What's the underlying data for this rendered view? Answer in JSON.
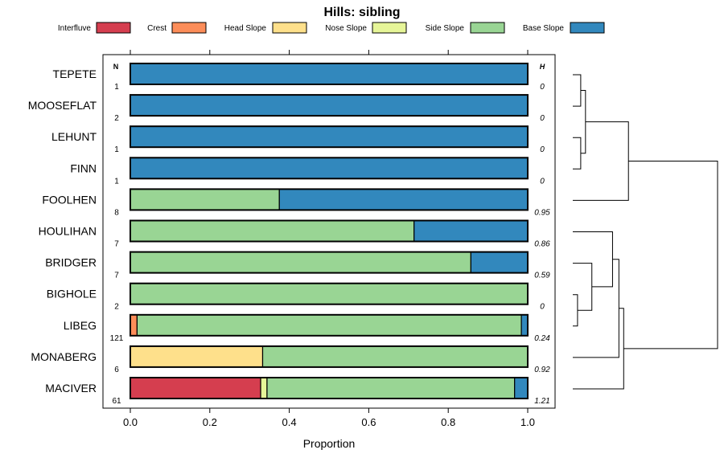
{
  "chart_data": {
    "type": "bar",
    "orientation": "horizontal",
    "stacked": true,
    "title": "Hills: sibling",
    "xlabel": "Proportion",
    "ylabel": "",
    "xlim": [
      -0.07,
      1.07
    ],
    "xticks": [
      0.0,
      0.2,
      0.4,
      0.6,
      0.8,
      1.0
    ],
    "xtick_labels": [
      "0.0",
      "0.2",
      "0.4",
      "0.6",
      "0.8",
      "1.0"
    ],
    "n_header": "N",
    "h_header": "H",
    "legend": [
      {
        "name": "Interfluve",
        "color": "#d53e4f"
      },
      {
        "name": "Crest",
        "color": "#fc8d59"
      },
      {
        "name": "Head Slope",
        "color": "#fee08b"
      },
      {
        "name": "Nose Slope",
        "color": "#e6f598"
      },
      {
        "name": "Side Slope",
        "color": "#99d594"
      },
      {
        "name": "Base Slope",
        "color": "#3288bd"
      }
    ],
    "categories": [
      "TEPETE",
      "MOOSEFLAT",
      "LEHUNT",
      "FINN",
      "FOOLHEN",
      "HOULIHAN",
      "BRIDGER",
      "BIGHOLE",
      "LIBEG",
      "MONABERG",
      "MACIVER"
    ],
    "n_values": [
      "1",
      "2",
      "1",
      "1",
      "8",
      "7",
      "7",
      "2",
      "121",
      "6",
      "61"
    ],
    "h_values": [
      "0",
      "0",
      "0",
      "0",
      "0.95",
      "0.86",
      "0.59",
      "0",
      "0.24",
      "0.92",
      "1.21"
    ],
    "series": [
      {
        "name": "Interfluve",
        "values": [
          0,
          0,
          0,
          0,
          0,
          0,
          0,
          0,
          0,
          0,
          0.328
        ]
      },
      {
        "name": "Crest",
        "values": [
          0,
          0,
          0,
          0,
          0,
          0,
          0,
          0,
          0.017,
          0,
          0
        ]
      },
      {
        "name": "Head Slope",
        "values": [
          0,
          0,
          0,
          0,
          0,
          0,
          0,
          0,
          0,
          0.333,
          0
        ]
      },
      {
        "name": "Nose Slope",
        "values": [
          0,
          0,
          0,
          0,
          0,
          0,
          0,
          0,
          0,
          0,
          0.016
        ]
      },
      {
        "name": "Side Slope",
        "values": [
          0,
          0,
          0,
          0,
          0.375,
          0.714,
          0.857,
          1.0,
          0.967,
          0.667,
          0.623
        ]
      },
      {
        "name": "Base Slope",
        "values": [
          1.0,
          1.0,
          1.0,
          1.0,
          0.625,
          0.286,
          0.143,
          0,
          0.016,
          0,
          0.033
        ]
      }
    ],
    "dendrogram": {
      "leaf_order": [
        "TEPETE",
        "MOOSEFLAT",
        "LEHUNT",
        "FINN",
        "FOOLHEN",
        "HOULIHAN",
        "BRIDGER",
        "BIGHOLE",
        "LIBEG",
        "MONABERG",
        "MACIVER"
      ],
      "merges": [
        {
          "a": "TEPETE",
          "b": "MOOSEFLAT",
          "height": 0.05
        },
        {
          "a": "LEHUNT",
          "b": "FINN",
          "height": 0.05
        },
        {
          "a": "TEPETE+MOOSEFLAT",
          "b": "LEHUNT+FINN",
          "height": 0.08
        },
        {
          "a": "TEPETE..FINN",
          "b": "FOOLHEN",
          "height": 0.35
        },
        {
          "a": "BIGHOLE",
          "b": "LIBEG",
          "height": 0.03
        },
        {
          "a": "BRIDGER",
          "b": "BIGHOLE+LIBEG",
          "height": 0.12
        },
        {
          "a": "HOULIHAN",
          "b": "BRIDGER..LIBEG",
          "height": 0.25
        },
        {
          "a": "HOULIHAN..LIBEG",
          "b": "MONABERG",
          "height": 0.29
        },
        {
          "a": "HOULIHAN..MONABERG",
          "b": "MACIVER",
          "height": 0.32
        },
        {
          "a": "TEPETE..FOOLHEN",
          "b": "HOULIHAN..MACIVER",
          "height": 0.91
        }
      ]
    }
  }
}
